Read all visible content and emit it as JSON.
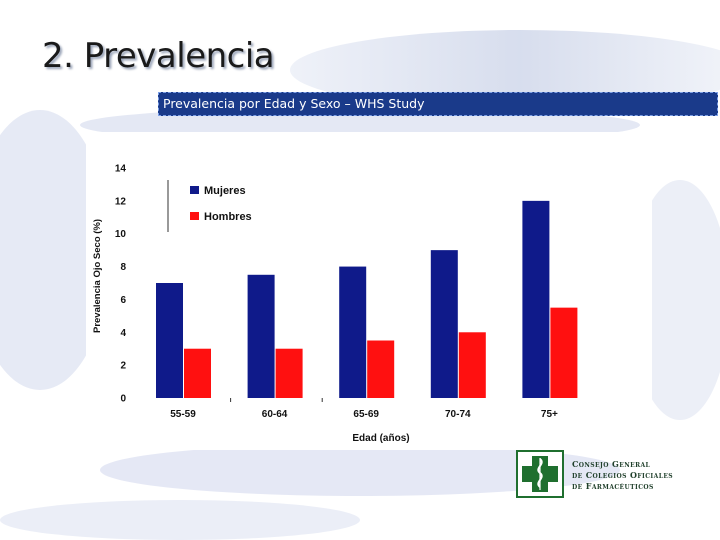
{
  "slide": {
    "title": "2. Prevalencia",
    "subtitle": "Prevalencia por Edad y Sexo – WHS Study"
  },
  "logo": {
    "lines": [
      "Consejo General",
      "de Colegios Oficiales",
      "de Farmacéuticos"
    ],
    "color": "#1f6f2f"
  },
  "chart_data": {
    "type": "bar",
    "categories": [
      "55-59",
      "60-64",
      "65-69",
      "70-74",
      "75+"
    ],
    "series": [
      {
        "name": "Mujeres",
        "color": "#0f1a8a",
        "values": [
          7.0,
          7.5,
          8.0,
          9.0,
          12.0
        ]
      },
      {
        "name": "Hombres",
        "color": "#ff1010",
        "values": [
          3.0,
          3.0,
          3.5,
          4.0,
          5.5
        ]
      }
    ],
    "yticks": [
      "0",
      "2",
      "4",
      "6",
      "8",
      "10",
      "12",
      "14"
    ],
    "ylim": [
      0,
      14
    ],
    "ylabel": "Prevalencia Ojo Seco (%)",
    "xlabel": "Edad (años)",
    "legend_position": "top-left",
    "grid": false
  }
}
